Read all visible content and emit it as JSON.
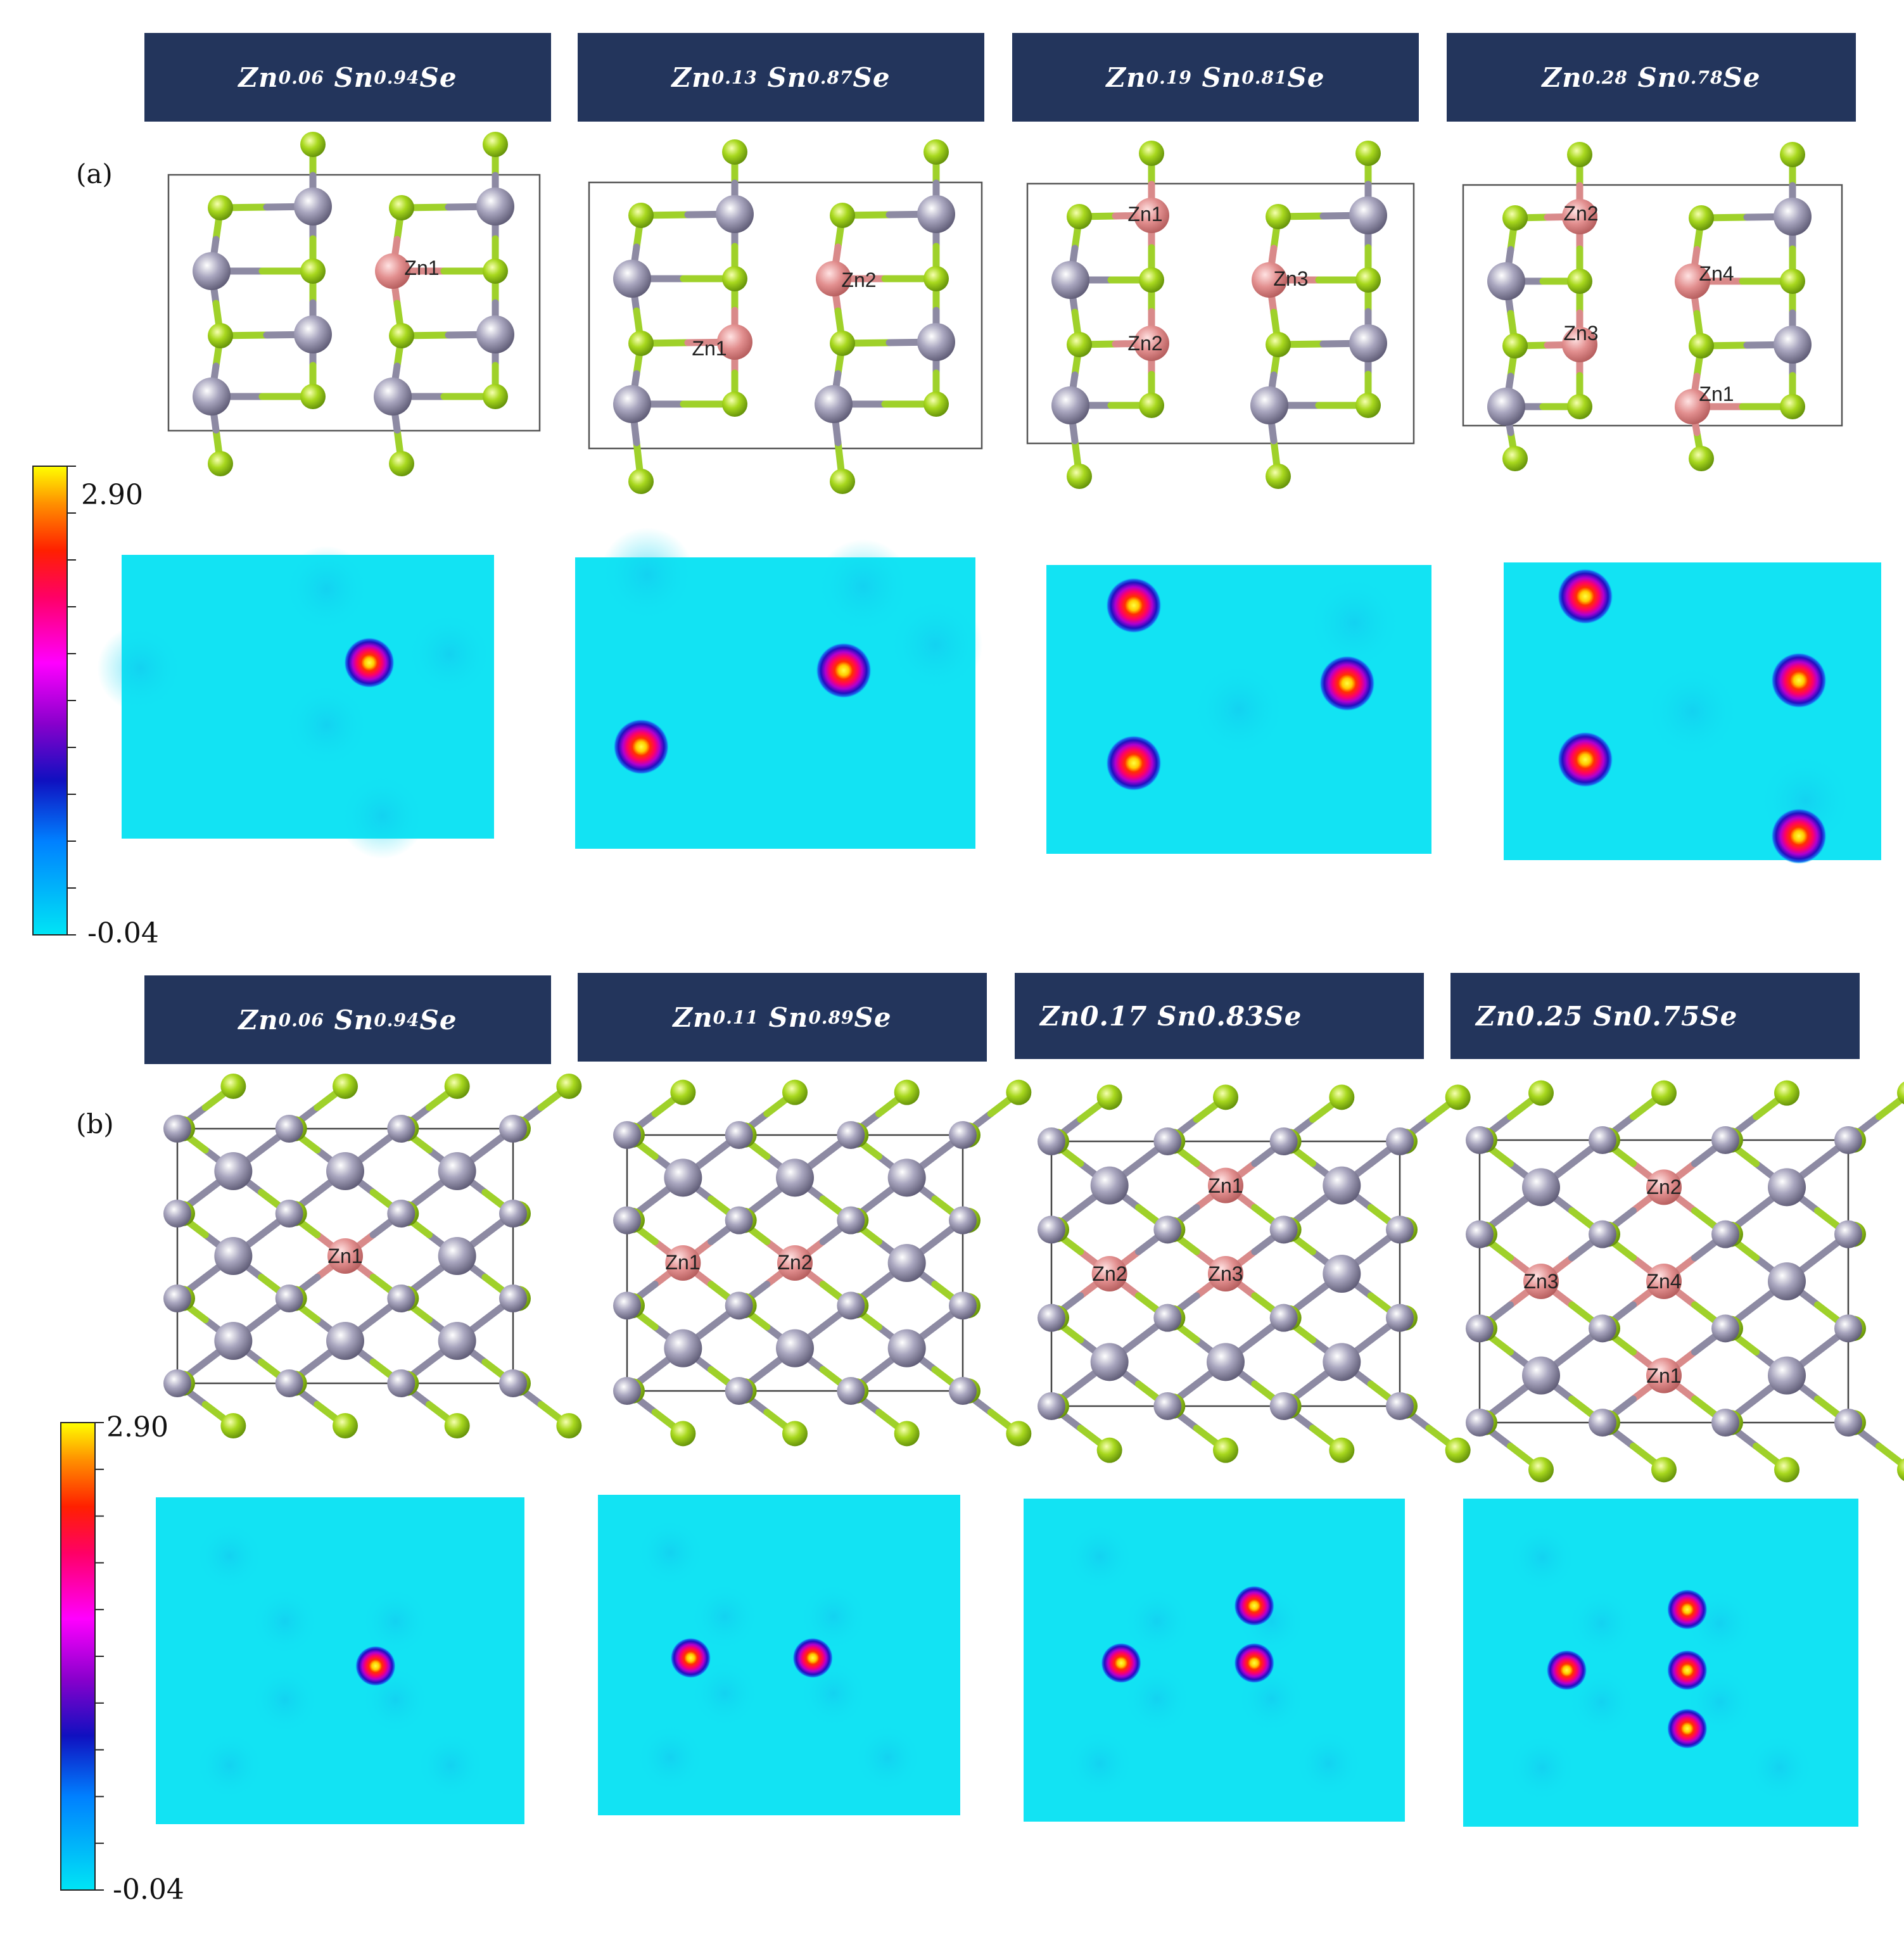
{
  "panels": {
    "a": {
      "label": "(a)",
      "headers": [
        {
          "zn": "Zn",
          "zn_sub": "0.06",
          "sn": "Sn",
          "sn_sub": "0.94",
          "se": "Se"
        },
        {
          "zn": "Zn",
          "zn_sub": "0.13",
          "sn": "Sn",
          "sn_sub": "0.87",
          "se": "Se"
        },
        {
          "zn": "Zn",
          "zn_sub": "0.19",
          "sn": "Sn",
          "sn_sub": "0.81",
          "se": "Se"
        },
        {
          "zn": "Zn",
          "zn_sub": "0.28",
          "sn": "Sn",
          "sn_sub": "0.78",
          "se": "Se"
        }
      ],
      "zn_labels": [
        [
          "Zn1"
        ],
        [
          "Zn1",
          "Zn2"
        ],
        [
          "Zn1",
          "Zn2",
          "Zn3"
        ],
        [
          "Zn1",
          "Zn2",
          "Zn3",
          "Zn4"
        ]
      ],
      "colorbar": {
        "max": "2.90",
        "min": "-0.04"
      }
    },
    "b": {
      "label": "(b)",
      "headers": [
        {
          "zn": "Zn",
          "zn_sub": "0.06",
          "sn": "Sn",
          "sn_sub": "0.94",
          "se": "Se"
        },
        {
          "zn": "Zn",
          "zn_sub": "0.11",
          "sn": "Sn",
          "sn_sub": "0.89",
          "se": "Se"
        },
        {
          "plain": "Zn0.17 Sn0.83Se"
        },
        {
          "plain": "Zn0.25 Sn0.75Se"
        }
      ],
      "zn_labels": [
        [
          "Zn1"
        ],
        [
          "Zn1",
          "Zn2"
        ],
        [
          "Zn1",
          "Zn2",
          "Zn3"
        ],
        [
          "Zn1",
          "Zn2",
          "Zn3",
          "Zn4"
        ]
      ],
      "colorbar": {
        "max": "2.90",
        "min": "-0.04"
      }
    }
  },
  "colors": {
    "header_bg": "#23355c",
    "sn_atom": "#8d8aa3",
    "se_atom": "#9fd12a",
    "zn_atom": "#d98a8a",
    "map_bg": "#12e3f3"
  }
}
